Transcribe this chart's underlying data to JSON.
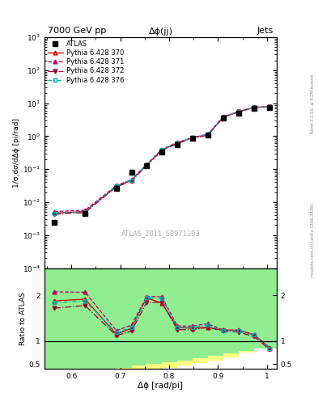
{
  "title_left": "7000 GeV pp",
  "title_right": "Jets",
  "plot_title": "Δϕ(jj)",
  "xlabel": "Δϕ [rad/pi]",
  "ylabel_main": "1/σ;dσ/dΔϕ [pi/rad]",
  "ylabel_ratio": "Ratio to ATLAS",
  "watermark": "ATLAS_2011_S8971293",
  "right_label": "mcplots.cern.ch [arXiv:1306.3436]",
  "right_label2": "Rivet 3.1.10, ≥ 3.2M events",
  "atlas_x": [
    0.565,
    0.628,
    0.692,
    0.723,
    0.754,
    0.785,
    0.817,
    0.848,
    0.879,
    0.911,
    0.942,
    0.974,
    1.005
  ],
  "atlas_y": [
    0.0025,
    0.0045,
    0.026,
    0.082,
    0.13,
    0.33,
    0.56,
    0.87,
    1.07,
    3.6,
    5.1,
    7.1,
    7.6
  ],
  "py370_x": [
    0.565,
    0.628,
    0.692,
    0.723,
    0.754,
    0.785,
    0.817,
    0.848,
    0.879,
    0.911,
    0.942,
    0.974,
    1.005
  ],
  "py370_y": [
    0.0047,
    0.0052,
    0.03,
    0.046,
    0.135,
    0.38,
    0.62,
    0.9,
    1.1,
    3.8,
    5.5,
    7.5,
    7.8
  ],
  "py371_x": [
    0.565,
    0.628,
    0.692,
    0.723,
    0.754,
    0.785,
    0.817,
    0.848,
    0.879,
    0.911,
    0.942,
    0.974,
    1.005
  ],
  "py371_y": [
    0.0052,
    0.0057,
    0.032,
    0.048,
    0.14,
    0.4,
    0.65,
    0.92,
    1.15,
    3.9,
    5.6,
    7.6,
    7.85
  ],
  "py372_x": [
    0.565,
    0.628,
    0.692,
    0.723,
    0.754,
    0.785,
    0.817,
    0.848,
    0.879,
    0.911,
    0.942,
    0.974,
    1.005
  ],
  "py372_y": [
    0.0043,
    0.0048,
    0.029,
    0.044,
    0.128,
    0.37,
    0.6,
    0.88,
    1.07,
    3.75,
    5.42,
    7.42,
    7.75
  ],
  "py376_x": [
    0.565,
    0.628,
    0.692,
    0.723,
    0.754,
    0.785,
    0.817,
    0.848,
    0.879,
    0.911,
    0.942,
    0.974,
    1.005
  ],
  "py376_y": [
    0.0046,
    0.0051,
    0.031,
    0.047,
    0.133,
    0.39,
    0.63,
    0.91,
    1.12,
    3.85,
    5.52,
    7.52,
    7.82
  ],
  "ratio370_y": [
    1.88,
    1.92,
    1.15,
    1.28,
    1.95,
    1.83,
    1.3,
    1.28,
    1.3,
    1.24,
    1.24,
    1.14,
    0.86
  ],
  "ratio371_y": [
    2.08,
    2.07,
    1.23,
    1.35,
    1.98,
    1.97,
    1.33,
    1.33,
    1.38,
    1.24,
    1.24,
    1.14,
    0.84
  ],
  "ratio372_y": [
    1.72,
    1.78,
    1.12,
    1.22,
    1.85,
    1.85,
    1.25,
    1.25,
    1.3,
    1.22,
    1.2,
    1.1,
    0.82
  ],
  "ratio376_y": [
    1.84,
    1.88,
    1.19,
    1.3,
    1.95,
    1.93,
    1.3,
    1.3,
    1.35,
    1.23,
    1.23,
    1.13,
    0.84
  ],
  "color_370": "#cc0000",
  "color_371": "#bb0066",
  "color_372": "#990033",
  "color_376": "#00aaaa",
  "ylim_main": [
    0.0001,
    1000.0
  ],
  "ylim_ratio": [
    0.4,
    2.6
  ],
  "xlim": [
    0.545,
    1.02
  ],
  "bin_edges": [
    0.545,
    0.597,
    0.66,
    0.692,
    0.723,
    0.754,
    0.785,
    0.817,
    0.848,
    0.879,
    0.911,
    0.942,
    0.974,
    1.02
  ],
  "green_bottom": [
    0.4,
    0.4,
    0.4,
    0.42,
    0.46,
    0.5,
    0.54,
    0.58,
    0.63,
    0.68,
    0.73,
    0.78,
    0.83
  ],
  "green_top": [
    2.6,
    2.6,
    2.6,
    2.6,
    2.6,
    2.6,
    2.6,
    2.6,
    2.6,
    2.6,
    2.6,
    2.6,
    2.6
  ],
  "yellow_bottom": [
    0.4,
    0.4,
    0.4,
    0.4,
    0.4,
    0.4,
    0.42,
    0.46,
    0.52,
    0.58,
    0.65,
    0.75,
    0.88
  ],
  "yellow_top": [
    2.6,
    2.6,
    2.6,
    2.6,
    2.6,
    2.6,
    2.6,
    2.6,
    2.6,
    2.6,
    2.6,
    2.6,
    2.6
  ]
}
